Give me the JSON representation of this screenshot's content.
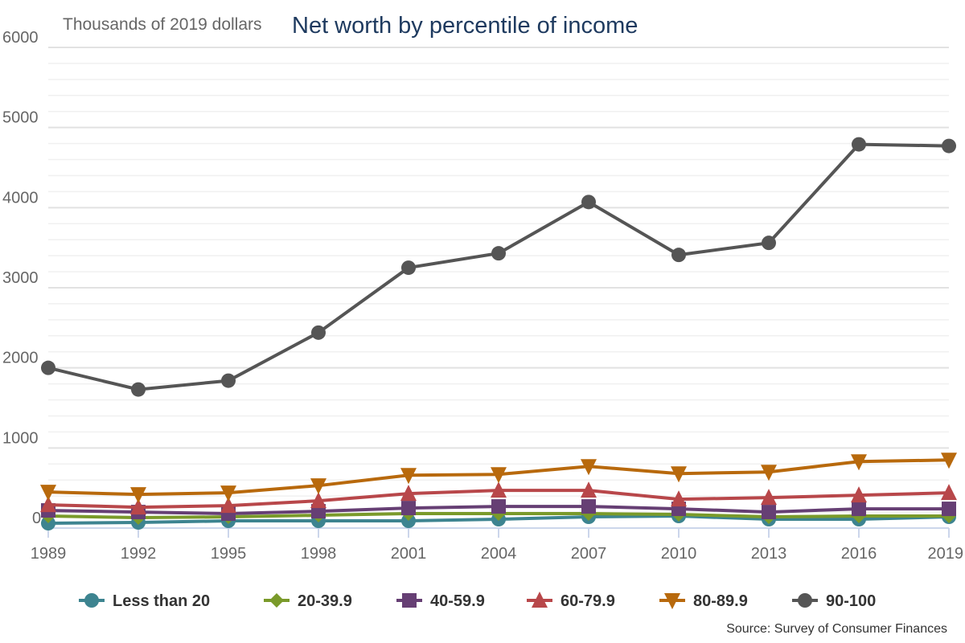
{
  "chart_data": {
    "type": "line",
    "title": "Net worth by percentile of income",
    "ylabel": "Thousands of 2019 dollars",
    "xlabel": "",
    "source": "Source: Survey of Consumer Finances",
    "ylim": [
      0,
      6000
    ],
    "yticks": [
      "0",
      "1000",
      "2000",
      "3000",
      "4000",
      "5000",
      "6000"
    ],
    "categories": [
      "1989",
      "1992",
      "1995",
      "1998",
      "2001",
      "2004",
      "2007",
      "2010",
      "2013",
      "2016",
      "2019"
    ],
    "legend_position": "bottom",
    "series": [
      {
        "name": "Less than 20",
        "color": "#3d8490",
        "marker": "circle",
        "values": [
          60,
          70,
          90,
          90,
          90,
          110,
          140,
          150,
          110,
          110,
          140
        ]
      },
      {
        "name": "20-39.9",
        "color": "#7a9a2a",
        "marker": "diamond",
        "values": [
          150,
          130,
          140,
          160,
          180,
          180,
          180,
          170,
          140,
          150,
          150
        ]
      },
      {
        "name": "40-59.9",
        "color": "#663f74",
        "marker": "square",
        "values": [
          220,
          200,
          180,
          210,
          250,
          270,
          270,
          240,
          200,
          240,
          240
        ]
      },
      {
        "name": "60-79.9",
        "color": "#b8474a",
        "marker": "triangle-up",
        "values": [
          290,
          260,
          280,
          340,
          430,
          470,
          470,
          360,
          380,
          410,
          440
        ]
      },
      {
        "name": "80-89.9",
        "color": "#b8690c",
        "marker": "triangle-down",
        "values": [
          450,
          420,
          440,
          530,
          660,
          670,
          770,
          680,
          700,
          830,
          850
        ]
      },
      {
        "name": "90-100",
        "color": "#555555",
        "marker": "circle",
        "values": [
          2000,
          1730,
          1840,
          2440,
          3250,
          3430,
          4070,
          3410,
          3560,
          4790,
          4770
        ]
      }
    ]
  }
}
